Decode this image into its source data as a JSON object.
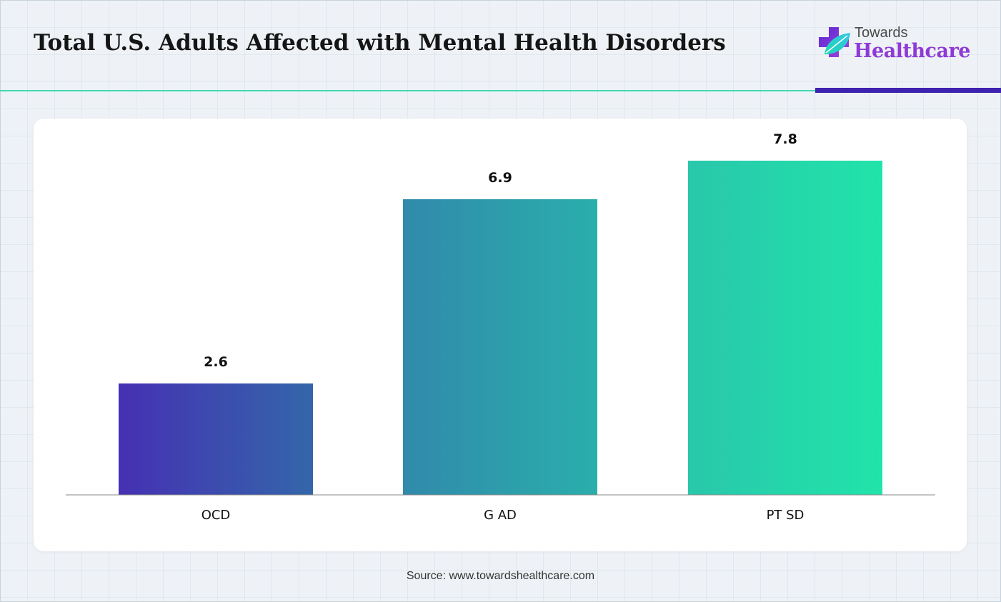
{
  "header": {
    "title": "Total U.S. Adults Affected with Mental Health Disorders"
  },
  "logo": {
    "line1": "Towards",
    "line2": "Healthcare",
    "icon": "medical-cross-leaf-icon"
  },
  "colors": {
    "accent_teal": "#3fd9b2",
    "accent_purple": "#3d22b0",
    "brand_purple": "#8e3ad6"
  },
  "chart_data": {
    "type": "bar",
    "categories": [
      "OCD",
      "G AD",
      "PT SD"
    ],
    "values": [
      2.6,
      6.9,
      7.8
    ],
    "ylim": [
      0,
      8.5
    ],
    "grid": false,
    "bar_gradients": [
      [
        "#4530b3",
        "#3466aa"
      ],
      [
        "#318aab",
        "#2aaeab"
      ],
      [
        "#29c7ab",
        "#21e4aa"
      ]
    ]
  },
  "footer": {
    "source": "Source: www.towardshealthcare.com"
  }
}
